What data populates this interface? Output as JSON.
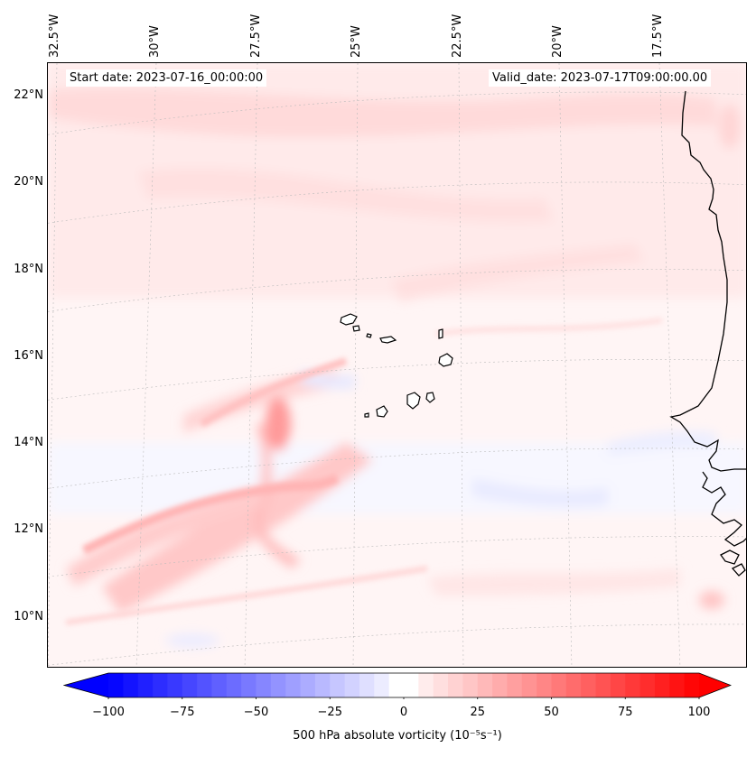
{
  "header": {
    "start_date": "Start date: 2023-07-16_00:00:00",
    "valid_date": "Valid_date: 2023-07-17T09:00:00.00"
  },
  "map": {
    "lon_labels": [
      "32.5°W",
      "30°W",
      "27.5°W",
      "25°W",
      "22.5°W",
      "20°W",
      "17.5°W"
    ],
    "lat_labels": [
      "22°N",
      "20°N",
      "18°N",
      "16°N",
      "14°N",
      "12°N",
      "10°N"
    ],
    "features": [
      "coastline-africa",
      "cape-verde-islands",
      "gridlines",
      "vorticity-field"
    ]
  },
  "colorbar": {
    "ticks": [
      "−100",
      "−75",
      "−50",
      "−25",
      "0",
      "25",
      "50",
      "75",
      "100"
    ],
    "label": "500 hPa absolute vorticity (10⁻⁵s⁻¹)",
    "vmin": -100,
    "vmax": 100,
    "colors": {
      "neg": "#0000ff",
      "zero": "#ffffff",
      "pos": "#ff0000"
    }
  }
}
